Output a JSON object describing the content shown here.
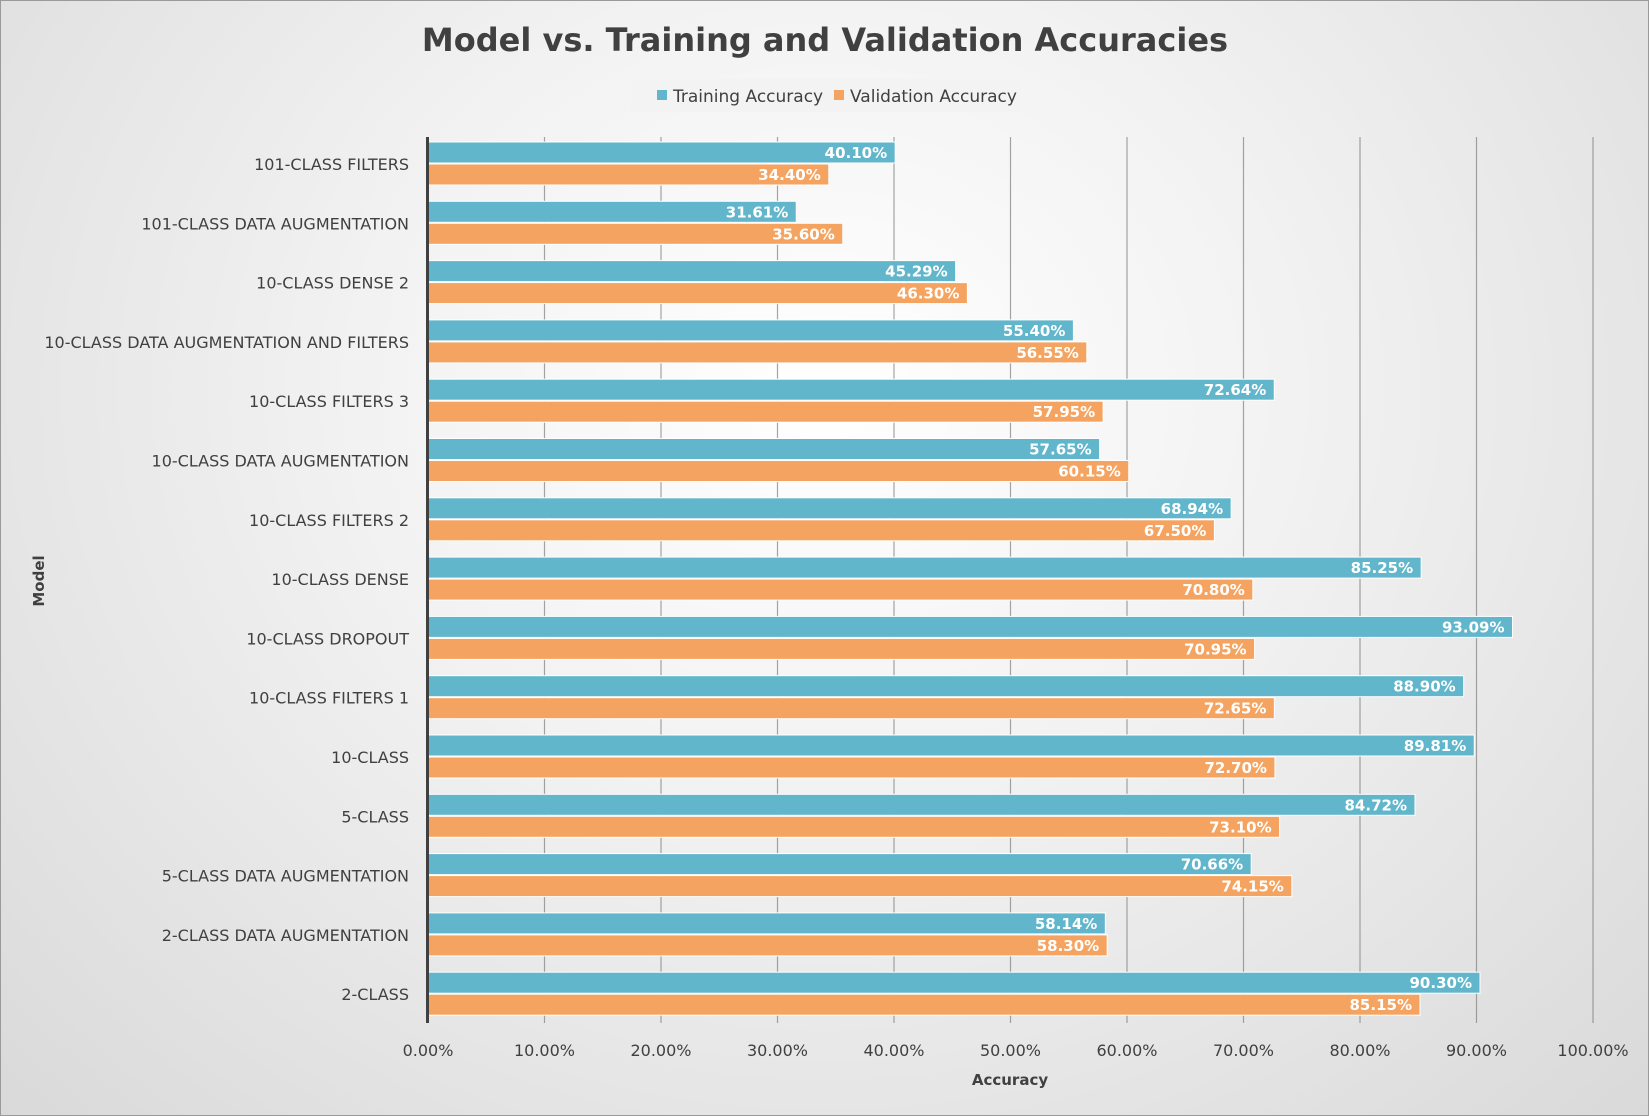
{
  "colors": {
    "training": "#62B6CB",
    "validation": "#F4A460",
    "grid": "#7f7f7f",
    "axis": "#404040"
  },
  "chart_data": {
    "type": "bar",
    "orientation": "horizontal",
    "title": "Model vs. Training and Validation Accuracies",
    "xlabel": "Accuracy",
    "ylabel": "Model",
    "xlim": [
      0,
      100
    ],
    "xticks": [
      "0.00%",
      "10.00%",
      "20.00%",
      "30.00%",
      "40.00%",
      "50.00%",
      "60.00%",
      "70.00%",
      "80.00%",
      "90.00%",
      "100.00%"
    ],
    "legend_position": "top",
    "grid": true,
    "categories": [
      "101-CLASS FILTERS",
      "101-CLASS DATA AUGMENTATION",
      "10-CLASS DENSE 2",
      "10-CLASS DATA AUGMENTATION AND FILTERS",
      "10-CLASS FILTERS 3",
      "10-CLASS DATA AUGMENTATION",
      "10-CLASS FILTERS 2",
      "10-CLASS DENSE",
      "10-CLASS DROPOUT",
      "10-CLASS FILTERS 1",
      "10-CLASS",
      "5-CLASS",
      "5-CLASS DATA AUGMENTATION",
      "2-CLASS DATA AUGMENTATION",
      "2-CLASS"
    ],
    "series": [
      {
        "name": "Training Accuracy",
        "values": [
          40.1,
          31.61,
          45.29,
          55.4,
          72.64,
          57.65,
          68.94,
          85.25,
          93.09,
          88.9,
          89.81,
          84.72,
          70.66,
          58.14,
          90.3
        ],
        "labels": [
          "40.10%",
          "31.61%",
          "45.29%",
          "55.40%",
          "72.64%",
          "57.65%",
          "68.94%",
          "85.25%",
          "93.09%",
          "88.90%",
          "89.81%",
          "84.72%",
          "70.66%",
          "58.14%",
          "90.30%"
        ]
      },
      {
        "name": "Validation Accuracy",
        "values": [
          34.4,
          35.6,
          46.3,
          56.55,
          57.95,
          60.15,
          67.5,
          70.8,
          70.95,
          72.65,
          72.7,
          73.1,
          74.15,
          58.3,
          85.15
        ],
        "labels": [
          "34.40%",
          "35.60%",
          "46.30%",
          "56.55%",
          "57.95%",
          "60.15%",
          "67.50%",
          "70.80%",
          "70.95%",
          "72.65%",
          "72.70%",
          "73.10%",
          "74.15%",
          "58.30%",
          "85.15%"
        ]
      }
    ]
  }
}
